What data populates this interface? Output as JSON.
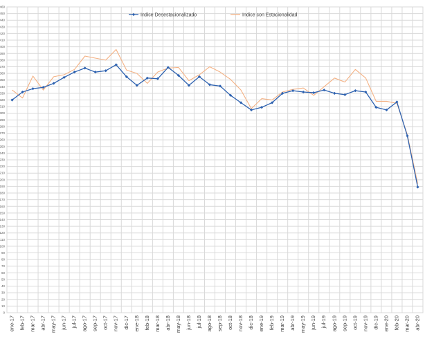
{
  "chart_data": {
    "type": "line",
    "ylim": [
      0,
      460
    ],
    "ytick_step": 10,
    "grid": true,
    "legend_placement": "top-center",
    "categories": [
      "ene-17",
      "feb-17",
      "mar-17",
      "abr-17",
      "may-17",
      "jun-17",
      "jul-17",
      "ago-17",
      "sep-17",
      "oct-17",
      "nov-17",
      "dic-17",
      "ene-18",
      "feb-18",
      "mar-18",
      "abr-18",
      "may-18",
      "jun-18",
      "jul-18",
      "ago-18",
      "sep-18",
      "oct-18",
      "nov-18",
      "dic-18",
      "ene-19",
      "feb-19",
      "mar-19",
      "abr-19",
      "may-19",
      "jun-19",
      "jul-19",
      "ago-19",
      "sep-19",
      "oct-19",
      "nov-19",
      "dic-19",
      "ene-20",
      "feb-20",
      "mar-20",
      "abr-20"
    ],
    "series": [
      {
        "name": "Indice Desestacionalizado",
        "color": "#2e62b0",
        "marker": true,
        "values": [
          320,
          332,
          337,
          339,
          345,
          354,
          362,
          368,
          362,
          364,
          373,
          355,
          342,
          353,
          352,
          369,
          357,
          342,
          355,
          343,
          341,
          327,
          316,
          305,
          309,
          316,
          330,
          334,
          332,
          331,
          335,
          330,
          328,
          334,
          332,
          309,
          305,
          317,
          266,
          189
        ]
      },
      {
        "name": "Indice con Estacionalidad",
        "color": "#f4b183",
        "marker": false,
        "values": [
          335,
          323,
          356,
          335,
          355,
          358,
          366,
          386,
          383,
          380,
          396,
          365,
          360,
          345,
          362,
          368,
          369,
          349,
          358,
          370,
          362,
          351,
          335,
          307,
          322,
          320,
          332,
          336,
          338,
          327,
          340,
          353,
          347,
          366,
          353,
          318,
          318,
          315,
          268,
          194
        ]
      }
    ]
  }
}
